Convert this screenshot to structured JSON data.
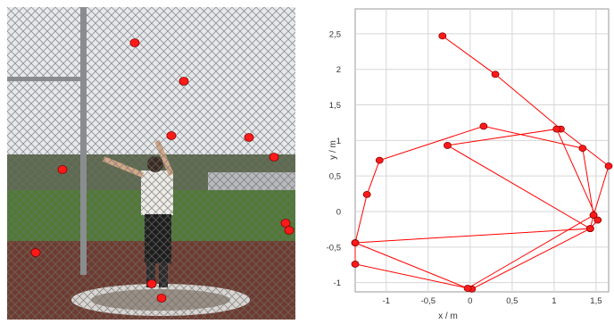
{
  "photo_panel": {
    "marker_color": "#ff1a1a",
    "markers": [
      {
        "id": 1
      },
      {
        "id": 2
      },
      {
        "id": 3
      },
      {
        "id": 4
      },
      {
        "id": 5
      },
      {
        "id": 6
      },
      {
        "id": 7
      },
      {
        "id": 8
      },
      {
        "id": 9
      },
      {
        "id": 10
      },
      {
        "id": 11
      }
    ]
  },
  "chart_data": {
    "type": "scatter",
    "title": "",
    "xlabel": "x / m",
    "ylabel": "y / m",
    "xlim": [
      -1.37,
      1.65
    ],
    "ylim": [
      -1.13,
      2.85
    ],
    "grid": true,
    "line_color": "#ff0000",
    "marker_color": "#ff1a1a",
    "x_ticks": [
      {
        "value": -1,
        "label": "-1"
      },
      {
        "value": -0.5,
        "label": "-0,5"
      },
      {
        "value": 0,
        "label": "0"
      },
      {
        "value": 0.5,
        "label": "0,5"
      },
      {
        "value": 1,
        "label": "1"
      },
      {
        "value": 1.5,
        "label": "1,5"
      }
    ],
    "y_ticks": [
      {
        "value": 2.5,
        "label": "2,5"
      },
      {
        "value": 2,
        "label": "2"
      },
      {
        "value": 1.5,
        "label": "1,5"
      },
      {
        "value": 1,
        "label": "1"
      },
      {
        "value": 0.5,
        "label": "0,5"
      },
      {
        "value": 0,
        "label": "0"
      },
      {
        "value": -0.5,
        "label": "-0,5"
      },
      {
        "value": -1,
        "label": "-1"
      }
    ],
    "series": [
      {
        "points": [
          {
            "x": -0.33,
            "y": 2.47
          },
          {
            "x": 0.3,
            "y": 1.93
          },
          {
            "x": 1.08,
            "y": 1.16
          },
          {
            "x": 1.65,
            "y": 0.64
          },
          {
            "x": 1.47,
            "y": -0.05
          },
          {
            "x": 1.43,
            "y": -0.24
          },
          {
            "x": 0.02,
            "y": -1.09
          },
          {
            "x": -1.37,
            "y": -0.74
          },
          {
            "x": -1.37,
            "y": -0.44
          },
          {
            "x": -1.23,
            "y": 0.24
          },
          {
            "x": -1.08,
            "y": 0.72
          },
          {
            "x": 0.16,
            "y": 1.2
          },
          {
            "x": 1.34,
            "y": 0.89
          },
          {
            "x": 1.47,
            "y": -0.05
          },
          {
            "x": -0.03,
            "y": -1.08
          },
          {
            "x": -1.37,
            "y": -0.44
          },
          {
            "x": 1.43,
            "y": -0.24
          },
          {
            "x": 1.52,
            "y": -0.12
          },
          {
            "x": 1.03,
            "y": 1.16
          },
          {
            "x": -0.27,
            "y": 0.93
          },
          {
            "x": 1.43,
            "y": -0.24
          }
        ]
      }
    ]
  }
}
